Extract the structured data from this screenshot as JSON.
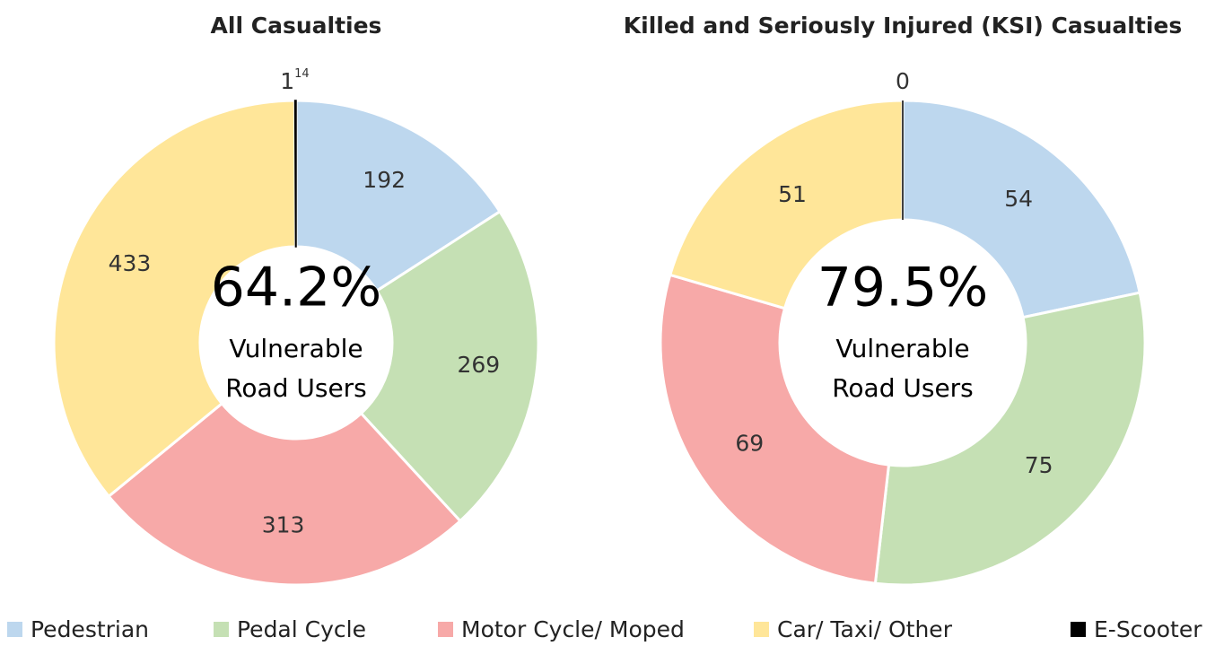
{
  "chart_data": [
    {
      "type": "donut",
      "title": "All Casualties",
      "values": [
        192,
        269,
        313,
        433,
        1
      ],
      "label_footnotes": [
        null,
        null,
        null,
        null,
        "14"
      ],
      "center_value": "64.2%",
      "center_label": [
        "Vulnerable",
        "Road Users"
      ]
    },
    {
      "type": "donut",
      "title": "Killed and Seriously Injured (KSI) Casualties",
      "values": [
        54,
        75,
        69,
        51,
        0
      ],
      "center_value": "79.5%",
      "center_label": [
        "Vulnerable",
        "Road Users"
      ]
    }
  ],
  "legend": {
    "names": [
      "Pedestrian",
      "Pedal Cycle",
      "Motor Cycle/ Moped",
      "Car/ Taxi/ Other",
      "E-Scooter"
    ],
    "colors": [
      "#bdd7ee",
      "#c5e0b4",
      "#f7a9a8",
      "#ffe699",
      "#000000"
    ]
  }
}
